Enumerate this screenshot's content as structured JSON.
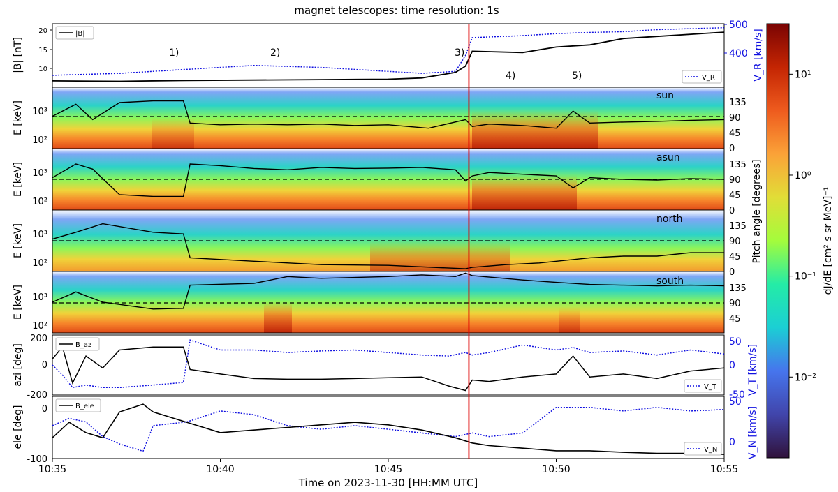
{
  "figure": {
    "title": "magnet telescopes:   time resolution: 1s",
    "xlabel": "Time on 2023-11-30 [HH:MM UTC]",
    "pitch_label": "Pitch angle [degrees]"
  },
  "colors": {
    "black": "#000000",
    "blue": "#1010e0",
    "event_line": "#e00000"
  },
  "chart_data": [
    {
      "type": "line",
      "panel": "B magnitude and radial speed",
      "ylabel": "|B| [nT]",
      "ylabel_right": "V_R [km/s]",
      "ylim": [
        6,
        21
      ],
      "ylim_right": [
        340,
        500
      ],
      "yticks": [
        "10",
        "15",
        "20"
      ],
      "yticks_right": [
        "400",
        "500"
      ],
      "legend": [
        "|B|",
        "V_R"
      ],
      "annotations": [
        "1)",
        "2)",
        "3)",
        "4)",
        "5)"
      ],
      "x_minutes": [
        0,
        2,
        4,
        6,
        8,
        10,
        11,
        12,
        12.3,
        12.5,
        14,
        15,
        16,
        17,
        18,
        20
      ],
      "series": [
        {
          "name": "|B|",
          "style": "solid",
          "color": "#000000",
          "values": [
            7.5,
            7.4,
            7.6,
            7.7,
            7.8,
            7.9,
            8.2,
            9.5,
            11,
            14.5,
            14.2,
            15.5,
            16,
            17.5,
            18,
            19
          ]
        },
        {
          "name": "V_R",
          "style": "dotted",
          "color": "#1010e0",
          "values": [
            370,
            375,
            385,
            395,
            390,
            380,
            375,
            380,
            420,
            465,
            470,
            475,
            478,
            480,
            485,
            490
          ]
        }
      ]
    },
    {
      "type": "heatmap",
      "panel": "sun",
      "label": "sun",
      "ylabel": "E [keV]",
      "ylabel_right_ticks": [
        "0",
        "45",
        "90",
        "135"
      ],
      "yticks": [
        "10²",
        "10³"
      ],
      "pitch_angle": {
        "x_minutes": [
          0,
          0.7,
          1.2,
          2,
          3,
          3.9,
          4.1,
          5,
          6,
          7,
          8,
          9,
          10,
          11.2,
          12.3,
          12.5,
          13,
          14,
          15,
          15.5,
          16,
          17,
          18,
          19,
          20
        ],
        "values": [
          95,
          130,
          85,
          135,
          140,
          140,
          75,
          70,
          72,
          70,
          72,
          68,
          70,
          60,
          85,
          65,
          72,
          68,
          60,
          110,
          75,
          78,
          80,
          83,
          85
        ]
      }
    },
    {
      "type": "heatmap",
      "panel": "asun",
      "label": "asun",
      "ylabel": "E [keV]",
      "ylabel_right_ticks": [
        "0",
        "45",
        "90",
        "135"
      ],
      "yticks": [
        "10²",
        "10³"
      ],
      "pitch_angle": {
        "x_minutes": [
          0,
          0.7,
          1.2,
          2,
          3,
          3.9,
          4.1,
          5,
          6,
          7,
          8,
          9,
          10,
          11,
          12,
          12.3,
          12.5,
          13,
          14,
          15,
          15.5,
          16,
          17,
          18,
          19,
          20
        ],
        "values": [
          95,
          135,
          120,
          45,
          40,
          40,
          135,
          130,
          122,
          118,
          125,
          122,
          123,
          125,
          118,
          85,
          100,
          110,
          105,
          100,
          65,
          95,
          90,
          88,
          92,
          90
        ]
      }
    },
    {
      "type": "heatmap",
      "panel": "north",
      "label": "north",
      "ylabel": "E [keV]",
      "ylabel_right_ticks": [
        "0",
        "45",
        "90",
        "135"
      ],
      "yticks": [
        "10²",
        "10³"
      ],
      "pitch_angle": {
        "x_minutes": [
          0,
          0.7,
          1.5,
          3,
          3.9,
          4.1,
          6,
          8,
          10,
          12.3,
          12.5,
          13.5,
          14.5,
          16,
          17,
          18,
          19,
          20
        ],
        "values": [
          95,
          115,
          140,
          115,
          110,
          40,
          30,
          20,
          18,
          8,
          12,
          20,
          25,
          40,
          45,
          45,
          55,
          55
        ]
      }
    },
    {
      "type": "heatmap",
      "panel": "south",
      "label": "south",
      "ylabel": "E [keV]",
      "ylabel_right_ticks": [
        "45",
        "90",
        "135"
      ],
      "yticks": [
        "10²",
        "10³"
      ],
      "pitch_angle": {
        "x_minutes": [
          0,
          0.7,
          1.5,
          3,
          3.9,
          4.1,
          6,
          7,
          8,
          10,
          11,
          12,
          12.3,
          12.5,
          14,
          15,
          16,
          17,
          18,
          19,
          20
        ],
        "values": [
          90,
          120,
          90,
          70,
          72,
          140,
          145,
          165,
          160,
          165,
          170,
          165,
          175,
          168,
          155,
          148,
          142,
          140,
          138,
          140,
          138
        ]
      }
    },
    {
      "type": "line",
      "panel": "azimuth",
      "ylabel": "azi [deg]",
      "ylabel_right": "V_T [km/s]",
      "ylim": [
        -200,
        200
      ],
      "yticks": [
        "-200",
        "0",
        "200"
      ],
      "yticks_right": [
        "-50",
        "0",
        "50"
      ],
      "legend": [
        "B_az",
        "V_T"
      ],
      "x_minutes": [
        0,
        0.3,
        0.6,
        1,
        1.5,
        2,
        3,
        3.9,
        4.1,
        5,
        6,
        7,
        8,
        9,
        10,
        11,
        11.8,
        12.3,
        12.5,
        13,
        14,
        15,
        15.5,
        16,
        17,
        18,
        19,
        20
      ],
      "series": [
        {
          "name": "B_az",
          "style": "solid",
          "color": "#000000",
          "values": [
            40,
            120,
            -120,
            60,
            -20,
            100,
            120,
            120,
            -30,
            -60,
            -90,
            -95,
            -95,
            -90,
            -85,
            -80,
            -140,
            -170,
            -100,
            -110,
            -80,
            -60,
            60,
            -80,
            -60,
            -90,
            -40,
            -20
          ]
        },
        {
          "name": "V_T",
          "style": "dotted",
          "color": "#1010e0",
          "values": [
            0,
            -20,
            -45,
            -40,
            -45,
            -45,
            -40,
            -35,
            50,
            30,
            30,
            25,
            28,
            30,
            25,
            20,
            18,
            25,
            20,
            25,
            40,
            30,
            35,
            25,
            28,
            20,
            30,
            22
          ]
        }
      ]
    },
    {
      "type": "line",
      "panel": "elevation",
      "ylabel": "ele [deg]",
      "ylabel_right": "V_N [km/s]",
      "ylim": [
        -100,
        20
      ],
      "yticks": [
        "-100",
        "0"
      ],
      "yticks_right": [
        "0",
        "50"
      ],
      "legend": [
        "B_ele",
        "V_N"
      ],
      "x_minutes": [
        0,
        0.5,
        1,
        1.5,
        2,
        2.7,
        3,
        4,
        5,
        6,
        7,
        8,
        9,
        10,
        11,
        12,
        12.5,
        13,
        14,
        15,
        16,
        17,
        18,
        19,
        20
      ],
      "series": [
        {
          "name": "B_ele",
          "style": "solid",
          "color": "#000000",
          "values": [
            -60,
            -30,
            -50,
            -60,
            -10,
            5,
            -10,
            -30,
            -50,
            -45,
            -40,
            -35,
            -30,
            -35,
            -45,
            -60,
            -70,
            -75,
            -80,
            -85,
            -85,
            -88,
            -90,
            -90,
            -92
          ]
        },
        {
          "name": "V_N",
          "style": "dotted",
          "color": "#1010e0",
          "values": [
            20,
            30,
            25,
            5,
            -5,
            -15,
            20,
            25,
            40,
            35,
            20,
            15,
            20,
            15,
            10,
            5,
            10,
            5,
            10,
            45,
            45,
            40,
            45,
            40,
            42
          ]
        }
      ]
    }
  ],
  "time_axis": {
    "ticks": [
      "10:35",
      "10:40",
      "10:45",
      "10:50",
      "10:55"
    ],
    "event_minute": 12.4
  },
  "colorbar": {
    "label": "dJ/dE [cm² s sr MeV]⁻¹",
    "ticks": [
      "10¹",
      "10⁰",
      "10⁻¹",
      "10⁻²"
    ],
    "scale": "log",
    "range_decades": [
      -2.8,
      1.5
    ]
  }
}
